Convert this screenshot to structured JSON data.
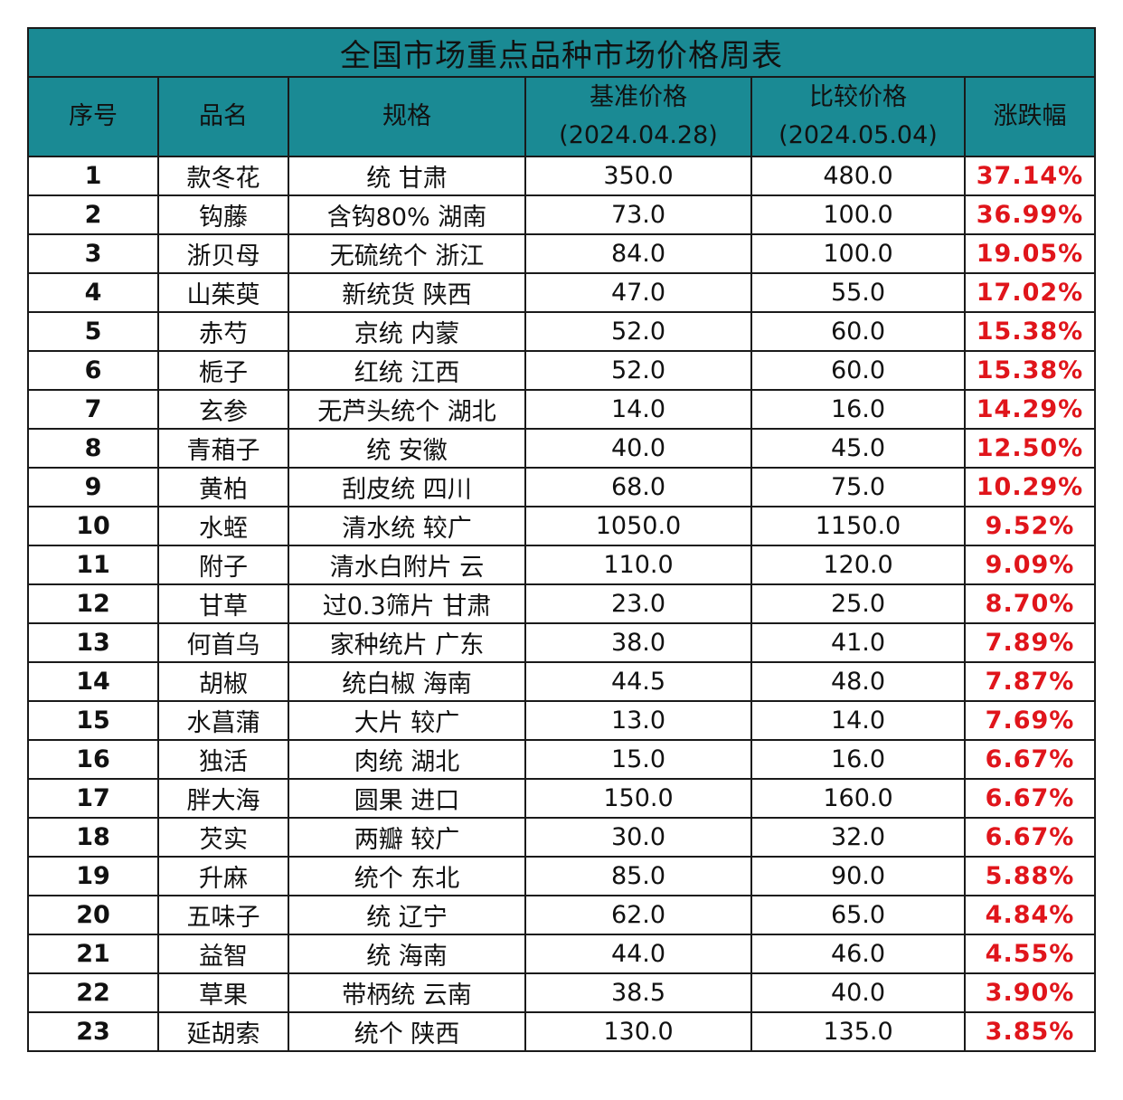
{
  "title": "全国市场重点品种市场价格周表",
  "headers": {
    "index": "序号",
    "name": "品名",
    "spec": "规格",
    "base_price_label": "基准价格",
    "base_price_date": "(2024.04.28)",
    "compare_price_label": "比较价格",
    "compare_price_date": "(2024.05.04)",
    "change": "涨跌幅"
  },
  "change_color": "#e0151b",
  "header_color": "#1a8a94",
  "rows": [
    {
      "index": "1",
      "name": "款冬花",
      "spec": "统 甘肃",
      "base": "350.0",
      "compare": "480.0",
      "change": "37.14%"
    },
    {
      "index": "2",
      "name": "钩藤",
      "spec": "含钩80% 湖南",
      "base": "73.0",
      "compare": "100.0",
      "change": "36.99%"
    },
    {
      "index": "3",
      "name": "浙贝母",
      "spec": "无硫统个 浙江",
      "base": "84.0",
      "compare": "100.0",
      "change": "19.05%"
    },
    {
      "index": "4",
      "name": "山茱萸",
      "spec": "新统货 陕西",
      "base": "47.0",
      "compare": "55.0",
      "change": "17.02%"
    },
    {
      "index": "5",
      "name": "赤芍",
      "spec": "京统 内蒙",
      "base": "52.0",
      "compare": "60.0",
      "change": "15.38%"
    },
    {
      "index": "6",
      "name": "栀子",
      "spec": "红统 江西",
      "base": "52.0",
      "compare": "60.0",
      "change": "15.38%"
    },
    {
      "index": "7",
      "name": "玄参",
      "spec": "无芦头统个 湖北",
      "base": "14.0",
      "compare": "16.0",
      "change": "14.29%"
    },
    {
      "index": "8",
      "name": "青葙子",
      "spec": "统 安徽",
      "base": "40.0",
      "compare": "45.0",
      "change": "12.50%"
    },
    {
      "index": "9",
      "name": "黄柏",
      "spec": "刮皮统 四川",
      "base": "68.0",
      "compare": "75.0",
      "change": "10.29%"
    },
    {
      "index": "10",
      "name": "水蛭",
      "spec": "清水统 较广",
      "base": "1050.0",
      "compare": "1150.0",
      "change": "9.52%"
    },
    {
      "index": "11",
      "name": "附子",
      "spec": "清水白附片 云",
      "base": "110.0",
      "compare": "120.0",
      "change": "9.09%"
    },
    {
      "index": "12",
      "name": "甘草",
      "spec": "过0.3筛片 甘肃",
      "base": "23.0",
      "compare": "25.0",
      "change": "8.70%"
    },
    {
      "index": "13",
      "name": "何首乌",
      "spec": "家种统片 广东",
      "base": "38.0",
      "compare": "41.0",
      "change": "7.89%"
    },
    {
      "index": "14",
      "name": "胡椒",
      "spec": "统白椒 海南",
      "base": "44.5",
      "compare": "48.0",
      "change": "7.87%"
    },
    {
      "index": "15",
      "name": "水菖蒲",
      "spec": "大片 较广",
      "base": "13.0",
      "compare": "14.0",
      "change": "7.69%"
    },
    {
      "index": "16",
      "name": "独活",
      "spec": "肉统 湖北",
      "base": "15.0",
      "compare": "16.0",
      "change": "6.67%"
    },
    {
      "index": "17",
      "name": "胖大海",
      "spec": "圆果 进口",
      "base": "150.0",
      "compare": "160.0",
      "change": "6.67%"
    },
    {
      "index": "18",
      "name": "芡实",
      "spec": "两瓣 较广",
      "base": "30.0",
      "compare": "32.0",
      "change": "6.67%"
    },
    {
      "index": "19",
      "name": "升麻",
      "spec": "统个 东北",
      "base": "85.0",
      "compare": "90.0",
      "change": "5.88%"
    },
    {
      "index": "20",
      "name": "五味子",
      "spec": "统 辽宁",
      "base": "62.0",
      "compare": "65.0",
      "change": "4.84%"
    },
    {
      "index": "21",
      "name": "益智",
      "spec": "统 海南",
      "base": "44.0",
      "compare": "46.0",
      "change": "4.55%"
    },
    {
      "index": "22",
      "name": "草果",
      "spec": "带柄统 云南",
      "base": "38.5",
      "compare": "40.0",
      "change": "3.90%"
    },
    {
      "index": "23",
      "name": "延胡索",
      "spec": "统个 陕西",
      "base": "130.0",
      "compare": "135.0",
      "change": "3.85%"
    }
  ]
}
